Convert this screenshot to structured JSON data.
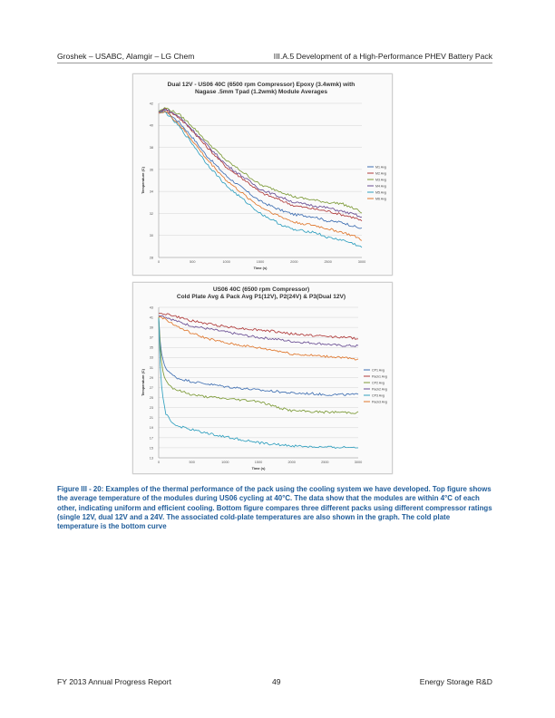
{
  "header": {
    "left": "Groshek – USABC, Alamgir – LG Chem",
    "right": "III.A.5 Development of a High-Performance PHEV Battery Pack"
  },
  "figures": [
    {
      "title_line1": "Dual 12V - US06 40C (6500 rpm Compressor) Epoxy (3.4wmk) with",
      "title_line2": "Nagase .5mm Tpad (1.2wmk) Module Averages",
      "xlabel": "Time (s)",
      "ylabel": "Temperature (C)",
      "yticks": [
        28,
        30,
        32,
        34,
        36,
        38,
        40,
        42
      ],
      "xticks": [
        0,
        500,
        1000,
        1500,
        2000,
        2500,
        3000
      ]
    },
    {
      "title_line1": "US06 40C (6500 rpm Compressor)",
      "title_line2": "Cold Plate Avg & Pack Avg P1(12V), P2(24V) & P3(Dual 12V)",
      "xlabel": "Time (s)",
      "ylabel": "Temperature (C)",
      "yticks": [
        13,
        15,
        17,
        19,
        21,
        23,
        25,
        27,
        29,
        31,
        33,
        35,
        37,
        39,
        41,
        43
      ],
      "xticks": [
        0,
        500,
        1000,
        1500,
        2000,
        2500,
        3000
      ]
    }
  ],
  "chart_data": [
    {
      "type": "line",
      "title": "Dual 12V - US06 40C (6500 rpm Compressor) Epoxy (3.4wmk) with Nagase .5mm Tpad (1.2wmk) Module Averages",
      "xlabel": "Time (s)",
      "ylabel": "Temperature (C)",
      "xlim": [
        0,
        3000
      ],
      "ylim": [
        28,
        42
      ],
      "x": [
        0,
        100,
        300,
        500,
        700,
        1000,
        1300,
        1500,
        1800,
        2000,
        2300,
        2500,
        2700,
        2900,
        3000
      ],
      "series": [
        {
          "name": "M1 Avg",
          "color": "#3f6fb2",
          "values": [
            41.2,
            41.3,
            40.3,
            38.9,
            37.3,
            35.4,
            34.0,
            33.1,
            32.3,
            31.9,
            31.7,
            31.3,
            31.2,
            30.8,
            30.6
          ]
        },
        {
          "name": "M2 Avg",
          "color": "#b03a3a",
          "values": [
            41.2,
            41.5,
            40.7,
            39.5,
            38.1,
            36.2,
            34.9,
            33.9,
            33.2,
            32.7,
            32.4,
            32.2,
            31.9,
            31.6,
            31.3
          ]
        },
        {
          "name": "M3 Avg",
          "color": "#7d9b38",
          "values": [
            41.3,
            41.6,
            41.0,
            39.9,
            38.6,
            36.8,
            35.5,
            34.6,
            34.0,
            33.5,
            33.2,
            33.0,
            32.9,
            32.4,
            32.1
          ]
        },
        {
          "name": "M4 Avg",
          "color": "#6a4f94",
          "values": [
            41.2,
            41.5,
            40.8,
            39.6,
            38.3,
            36.4,
            35.1,
            34.2,
            33.5,
            33.0,
            32.7,
            32.5,
            32.2,
            31.9,
            31.6
          ]
        },
        {
          "name": "M5 Avg",
          "color": "#31a0bf",
          "values": [
            41.1,
            41.2,
            39.9,
            38.3,
            36.6,
            34.5,
            33.0,
            32.0,
            31.0,
            30.5,
            30.3,
            29.8,
            29.6,
            29.2,
            28.9
          ]
        },
        {
          "name": "M6 Avg",
          "color": "#e0782e",
          "values": [
            41.1,
            41.3,
            40.1,
            38.6,
            37.0,
            35.0,
            33.5,
            32.6,
            31.7,
            31.2,
            30.9,
            30.6,
            30.3,
            29.9,
            29.6
          ]
        }
      ]
    },
    {
      "type": "line",
      "title": "US06 40C (6500 rpm Compressor) Cold Plate Avg & Pack Avg P1(12V), P2(24V) & P3(Dual 12V)",
      "xlabel": "Time (s)",
      "ylabel": "Temperature (C)",
      "xlim": [
        0,
        3000
      ],
      "ylim": [
        13,
        43
      ],
      "x": [
        0,
        20,
        50,
        100,
        200,
        300,
        500,
        700,
        1000,
        1300,
        1500,
        1800,
        2000,
        2300,
        2500,
        2700,
        3000
      ],
      "series": [
        {
          "name": "CP1 Avg",
          "color": "#3f6fb2",
          "values": [
            41.0,
            36.5,
            33.0,
            31.0,
            29.5,
            28.8,
            28.2,
            27.8,
            27.2,
            26.8,
            26.5,
            26.2,
            25.9,
            25.8,
            25.6,
            25.6,
            25.6
          ]
        },
        {
          "name": "Pack1 Avg",
          "color": "#b03a3a",
          "values": [
            41.8,
            41.8,
            41.8,
            41.7,
            41.4,
            41.0,
            40.3,
            39.8,
            39.2,
            38.7,
            38.5,
            38.1,
            37.7,
            37.4,
            37.2,
            37.1,
            36.8
          ]
        },
        {
          "name": "CP2 Avg",
          "color": "#7d9b38",
          "values": [
            41.0,
            35.5,
            31.0,
            28.5,
            27.0,
            26.4,
            25.6,
            25.2,
            24.8,
            24.5,
            24.3,
            23.0,
            22.4,
            22.2,
            22.1,
            22.1,
            22.0
          ]
        },
        {
          "name": "Pack2 Avg",
          "color": "#6a4f94",
          "values": [
            41.3,
            41.3,
            41.3,
            41.1,
            40.6,
            40.1,
            39.3,
            38.8,
            38.1,
            37.4,
            37.0,
            36.6,
            36.2,
            35.9,
            35.7,
            35.4,
            35.3
          ]
        },
        {
          "name": "CP3 Avg",
          "color": "#31a0bf",
          "values": [
            40.8,
            32.0,
            26.0,
            22.0,
            20.0,
            19.3,
            18.6,
            18.0,
            17.2,
            16.5,
            16.0,
            15.6,
            15.4,
            15.2,
            15.1,
            15.1,
            15.1
          ]
        },
        {
          "name": "Pack3 Avg",
          "color": "#e0782e",
          "values": [
            41.1,
            41.1,
            41.0,
            40.6,
            39.8,
            39.0,
            37.8,
            36.9,
            35.9,
            35.3,
            34.9,
            34.3,
            33.7,
            33.4,
            33.2,
            33.1,
            32.5
          ]
        }
      ]
    }
  ],
  "caption": "Figure III - 20: Examples of the thermal performance of the pack using the cooling system we have developed. Top figure shows the average temperature of the modules during US06 cycling at 40°C. The data show that the modules are within 4°C of each other, indicating uniform and efficient cooling. Bottom figure compares three different packs using different compressor ratings (single 12V, dual 12V and a 24V. The associated cold-plate temperatures are also shown in the graph. The cold plate temperature is the bottom curve",
  "footer": {
    "left": "FY 2013 Annual Progress Report",
    "page": "49",
    "right": "Energy Storage R&D"
  }
}
